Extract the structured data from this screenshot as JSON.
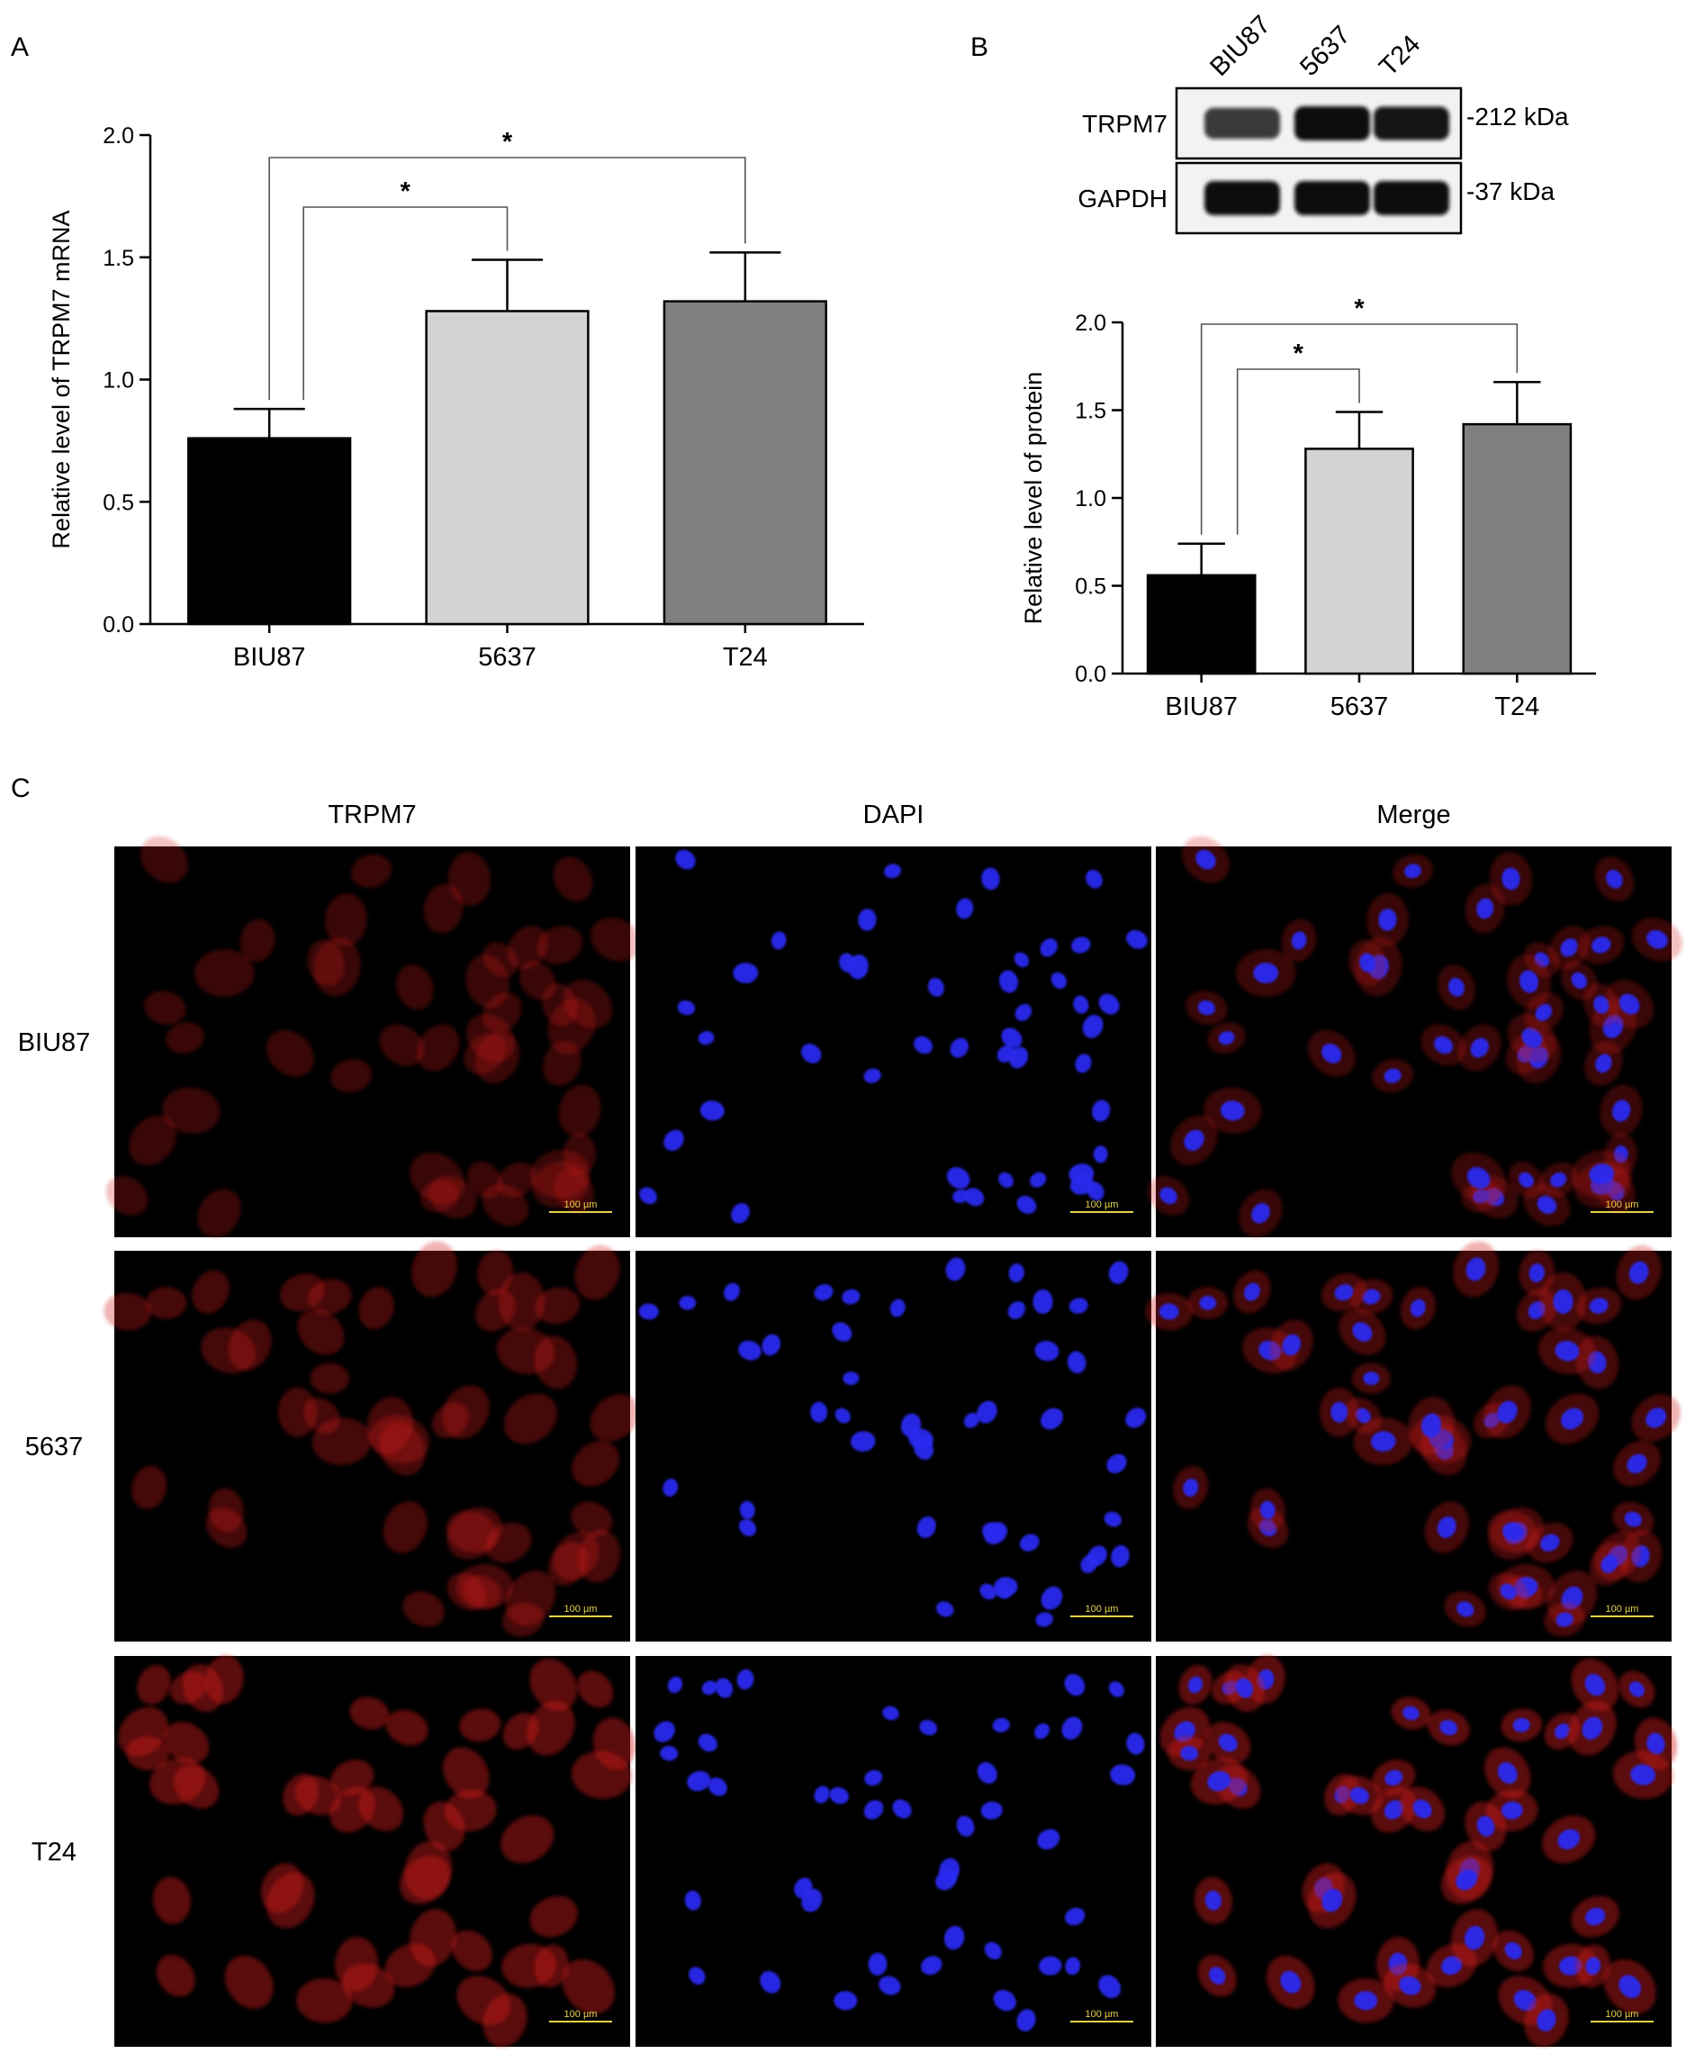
{
  "panels": {
    "a": {
      "letter": "A"
    },
    "b": {
      "letter": "B"
    },
    "c": {
      "letter": "C"
    }
  },
  "chart_data": [
    {
      "type": "bar",
      "panel": "A",
      "title": "",
      "xlabel": "",
      "ylabel": "Relative level of TRPM7 mRNA",
      "ylim": [
        0,
        2.0
      ],
      "yticks": [
        "0.0",
        "0.5",
        "1.0",
        "1.5",
        "2.0"
      ],
      "categories": [
        "BIU87",
        "5637",
        "T24"
      ],
      "values": [
        0.76,
        1.28,
        1.32
      ],
      "errors": [
        0.12,
        0.21,
        0.2
      ],
      "colors": [
        "#000000",
        "#d3d3d3",
        "#808080"
      ],
      "significance": [
        {
          "from": 0,
          "to": 1,
          "label": "*"
        },
        {
          "from": 0,
          "to": 2,
          "label": "*"
        }
      ]
    },
    {
      "type": "bar",
      "panel": "B",
      "title": "",
      "xlabel": "",
      "ylabel": "Relative level of protein",
      "ylim": [
        0,
        2.0
      ],
      "yticks": [
        "0.0",
        "0.5",
        "1.0",
        "1.5",
        "2.0"
      ],
      "categories": [
        "BIU87",
        "5637",
        "T24"
      ],
      "values": [
        0.56,
        1.28,
        1.42
      ],
      "errors": [
        0.18,
        0.21,
        0.24
      ],
      "colors": [
        "#000000",
        "#d3d3d3",
        "#808080"
      ],
      "significance": [
        {
          "from": 0,
          "to": 1,
          "label": "*"
        },
        {
          "from": 0,
          "to": 2,
          "label": "*"
        }
      ]
    }
  ],
  "western_blot": {
    "lanes": [
      "BIU87",
      "5637",
      "T24"
    ],
    "rows": [
      {
        "protein": "TRPM7",
        "size": "-212 kDa",
        "intensity": [
          0.55,
          1.0,
          0.9
        ]
      },
      {
        "protein": "GAPDH",
        "size": "-37 kDa",
        "intensity": [
          1.0,
          1.0,
          1.0
        ]
      }
    ]
  },
  "microscopy": {
    "columns": [
      "TRPM7",
      "DAPI",
      "Merge"
    ],
    "rows": [
      "BIU87",
      "5637",
      "T24"
    ],
    "scale_bar": "100 µm",
    "channel_colors": {
      "trpm7": "#d21a1a",
      "dapi": "#2a2af0"
    }
  }
}
